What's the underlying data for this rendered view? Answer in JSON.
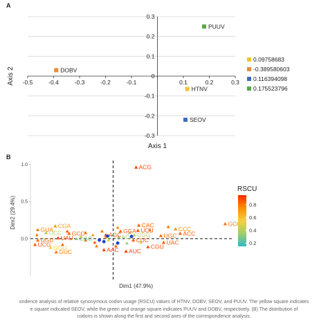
{
  "chart_data": [
    {
      "type": "scatter",
      "panel": "A",
      "xlabel": "Axis 1",
      "ylabel": "Axis 2",
      "xlim": [
        -0.5,
        0.3
      ],
      "ylim": [
        -0.3,
        0.3
      ],
      "x_ticks": [
        "-0.5",
        "-0.4",
        "-0.3",
        "-0.2",
        "-0.1",
        "0",
        "0.1",
        "0.2",
        "0.3"
      ],
      "y_ticks": [
        "0.3",
        "0.2",
        "0.1",
        "0",
        "-0.1",
        "-0.2",
        "-0.3"
      ],
      "grid": true,
      "points": [
        {
          "label": "PUUV",
          "x": 0.18,
          "y": 0.25,
          "color": "#5aa845"
        },
        {
          "label": "DOBV",
          "x": -0.39,
          "y": 0.03,
          "color": "#e98b3a"
        },
        {
          "label": "HTNV",
          "x": 0.115,
          "y": -0.065,
          "color": "#f2c230"
        },
        {
          "label": "SEOV",
          "x": 0.108,
          "y": -0.22,
          "color": "#3f6bbf"
        }
      ],
      "legend": {
        "position": "right",
        "entries": [
          {
            "label": "0.09758683",
            "color": "#f2c230"
          },
          {
            "label": "-0.389580603",
            "color": "#e98b3a"
          },
          {
            "label": "0.116394098",
            "color": "#3f6bbf"
          },
          {
            "label": "0.175523796",
            "color": "#5aa845"
          }
        ]
      }
    },
    {
      "type": "scatter",
      "panel": "B",
      "xlabel": "Dim1 (47.9%)",
      "ylabel": "Dim2 (29.4%)",
      "xlim": [
        -0.9,
        1.3
      ],
      "ylim": [
        -0.55,
        1.05
      ],
      "y_ticks": [
        "1.0",
        "0.5",
        "0.0"
      ],
      "reference_lines": "dashed at x=0 and y=0",
      "colorbar": {
        "title": "RSCU",
        "ticks": [
          "0.8",
          "0.6",
          "0.4",
          "0.2"
        ],
        "range": [
          0.15,
          0.95
        ],
        "colors": [
          "#ff2a00",
          "#ff8c00",
          "#f5d040",
          "#9fcf6a",
          "#35b8c8"
        ]
      },
      "labeled_points": [
        {
          "label": "ACG",
          "x": 0.25,
          "y": 0.96,
          "rscu": 0.9
        },
        {
          "label": "GCG",
          "x": 1.22,
          "y": 0.2,
          "rscu": 0.8
        },
        {
          "label": "CGA",
          "x": -0.63,
          "y": 0.17,
          "rscu": 0.72
        },
        {
          "label": "GUA",
          "x": -0.82,
          "y": 0.12,
          "rscu": 0.78
        },
        {
          "label": "UCC",
          "x": -0.73,
          "y": 0.08,
          "rscu": 0.42
        },
        {
          "label": "GCC",
          "x": -0.48,
          "y": 0.07,
          "rscu": 0.85
        },
        {
          "label": "UAU",
          "x": -0.6,
          "y": 0.01,
          "rscu": 0.9
        },
        {
          "label": "CGC",
          "x": -0.4,
          "y": 0.0,
          "rscu": 0.3
        },
        {
          "label": "CAC",
          "x": 0.28,
          "y": 0.18,
          "rscu": 0.85
        },
        {
          "label": "CCC",
          "x": 0.68,
          "y": 0.13,
          "rscu": 0.75
        },
        {
          "label": "UCU",
          "x": 0.27,
          "y": 0.11,
          "rscu": 0.88
        },
        {
          "label": "GGA",
          "x": 0.08,
          "y": 0.1,
          "rscu": 0.85
        },
        {
          "label": "ACC",
          "x": 0.73,
          "y": 0.07,
          "rscu": 0.85
        },
        {
          "label": "UGC",
          "x": 0.52,
          "y": 0.04,
          "rscu": 0.82
        },
        {
          "label": "UGU",
          "x": -0.82,
          "y": -0.02,
          "rscu": 0.82
        },
        {
          "label": "UAC",
          "x": 0.55,
          "y": -0.05,
          "rscu": 0.85
        },
        {
          "label": "UCG",
          "x": -0.85,
          "y": -0.08,
          "rscu": 0.85
        },
        {
          "label": "CGU",
          "x": 0.38,
          "y": -0.11,
          "rscu": 0.88
        },
        {
          "label": "GGU",
          "x": -0.68,
          "y": -0.12,
          "rscu": 0.55
        },
        {
          "label": "GUC",
          "x": -0.62,
          "y": -0.18,
          "rscu": 0.78
        },
        {
          "label": "AUC",
          "x": 0.14,
          "y": -0.17,
          "rscu": 0.9
        },
        {
          "label": "ACG",
          "x": 0.06,
          "y": 0.02,
          "rscu": 0.35
        },
        {
          "label": "AGC",
          "x": -0.08,
          "y": 0.05,
          "rscu": 0.9
        },
        {
          "label": "CUC",
          "x": 0.22,
          "y": -0.02,
          "rscu": 0.85
        },
        {
          "label": "CGG",
          "x": 0.23,
          "y": 0.05,
          "rscu": 0.4
        },
        {
          "label": "AAC",
          "x": -0.1,
          "y": -0.15,
          "rscu": 0.9
        }
      ],
      "unlabeled_points": [
        {
          "x": -0.83,
          "y": 0.05,
          "rscu": 0.8
        },
        {
          "x": -0.5,
          "y": 0.1,
          "rscu": 0.85
        },
        {
          "x": -0.3,
          "y": 0.08,
          "rscu": 0.85
        },
        {
          "x": -0.22,
          "y": 0.05,
          "rscu": 0.7
        },
        {
          "x": -0.35,
          "y": 0.03,
          "rscu": 0.6
        },
        {
          "x": -0.12,
          "y": 0.1,
          "rscu": 0.8
        },
        {
          "x": 0.05,
          "y": 0.15,
          "rscu": 0.75
        },
        {
          "x": 0.18,
          "y": 0.08,
          "rscu": 0.4
        },
        {
          "x": 0.15,
          "y": -0.06,
          "rscu": 0.35
        },
        {
          "x": -0.05,
          "y": -0.02,
          "rscu": 0.45
        },
        {
          "x": -0.2,
          "y": -0.05,
          "rscu": 0.88
        },
        {
          "x": -0.18,
          "y": -0.1,
          "rscu": 0.8
        },
        {
          "x": -0.3,
          "y": -0.02,
          "rscu": 0.85
        },
        {
          "x": 0.03,
          "y": -0.1,
          "rscu": 0.85
        },
        {
          "x": 0.0,
          "y": 0.05,
          "rscu": 0.2
        },
        {
          "x": 0.4,
          "y": 0.12,
          "rscu": 0.8
        },
        {
          "x": 0.6,
          "y": 0.16,
          "rscu": 0.8
        },
        {
          "x": -0.55,
          "y": -0.08,
          "rscu": 0.85
        },
        {
          "x": -0.08,
          "y": 0.02,
          "rscu": 0.75
        },
        {
          "x": 0.3,
          "y": -0.05,
          "rscu": 0.5
        }
      ],
      "blue_markers": [
        {
          "x": -0.06,
          "y": 0.035
        },
        {
          "x": 0.2,
          "y": 0.03
        },
        {
          "x": -0.1,
          "y": -0.04
        },
        {
          "x": -0.15,
          "y": -0.02
        },
        {
          "x": 0.05,
          "y": -0.06
        }
      ]
    }
  ],
  "caption": {
    "line1": "ondence analysis of relative synonymous codon usage (RSCU) values of HTNV, DOBV, SEOV, and PUUV. The yellow square indicates",
    "line2": "e square indicated SEOV, while the green and orange square indicates PUUV and DOBV, respectively. (B) The distribution of",
    "line3": "codons is shown along the first and second axes of the correspondence analysis."
  }
}
